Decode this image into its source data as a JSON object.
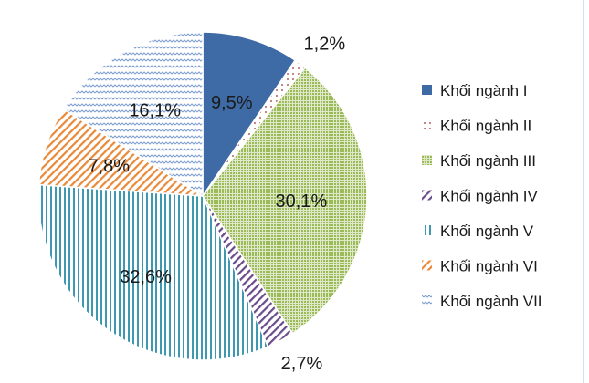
{
  "chart_data": {
    "type": "pie",
    "title": "",
    "legend_position": "right",
    "start_angle_deg": 0,
    "direction": "clockwise",
    "slices": [
      {
        "label": "Khối ngành I",
        "value": 9.5,
        "value_label": "9,5%",
        "color": "#3e6ba5",
        "pattern": "solid"
      },
      {
        "label": "Khối ngành II",
        "value": 1.2,
        "value_label": "1,2%",
        "color": "#9b2f2f",
        "pattern": "dots"
      },
      {
        "label": "Khối ngành III",
        "value": 30.1,
        "value_label": "30,1%",
        "color": "#9bbb59",
        "pattern": "grid-dots"
      },
      {
        "label": "Khối ngành IV",
        "value": 2.7,
        "value_label": "2,7%",
        "color": "#6b4a8a",
        "pattern": "diagonal-dashes"
      },
      {
        "label": "Khối ngành V",
        "value": 32.6,
        "value_label": "32,6%",
        "color": "#3e98b0",
        "pattern": "vertical-lines"
      },
      {
        "label": "Khối ngành VI",
        "value": 7.8,
        "value_label": "7,8%",
        "color": "#e88a3a",
        "pattern": "diagonal-dashes"
      },
      {
        "label": "Khối ngành VII",
        "value": 16.1,
        "value_label": "16,1%",
        "color": "#7f9fcf",
        "pattern": "zigzag"
      }
    ]
  }
}
